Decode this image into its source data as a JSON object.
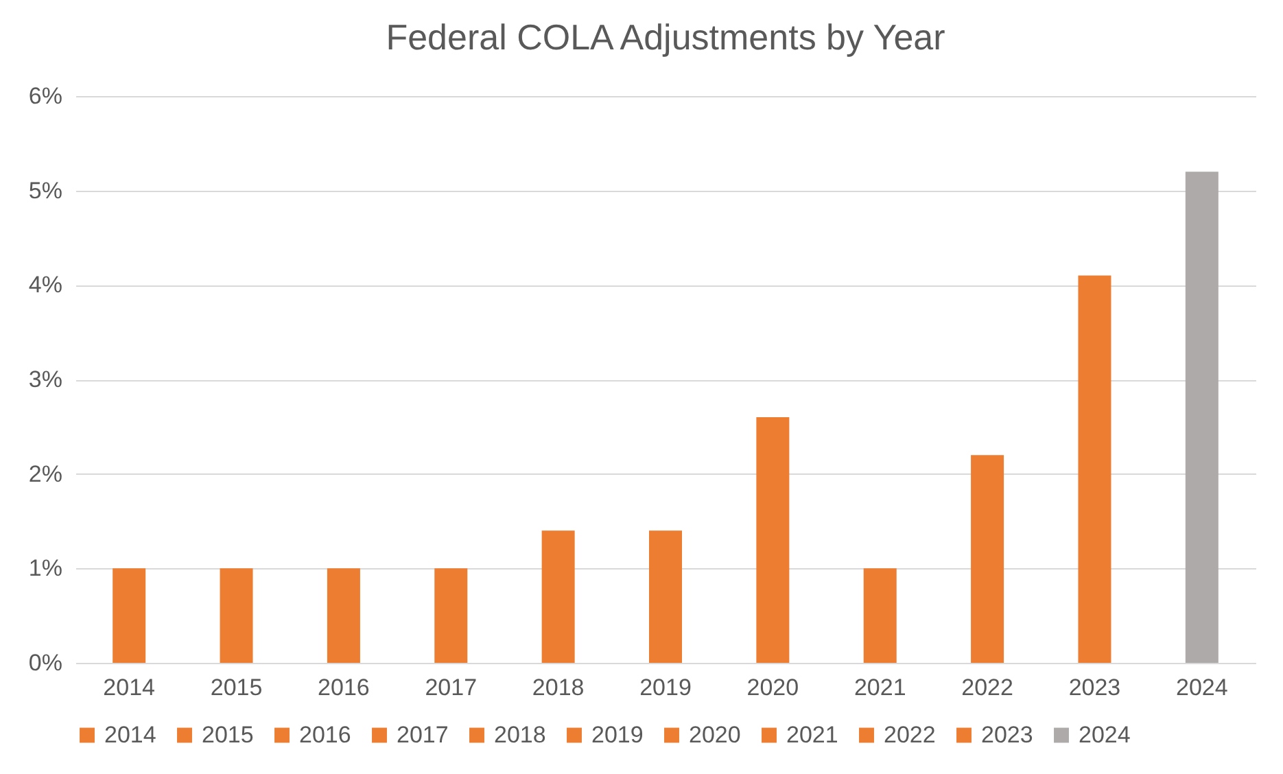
{
  "chart_data": {
    "type": "bar",
    "title": "Federal COLA Adjustments by Year",
    "categories": [
      "2014",
      "2015",
      "2016",
      "2017",
      "2018",
      "2019",
      "2020",
      "2021",
      "2022",
      "2023",
      "2024"
    ],
    "series": [
      {
        "name": "2014",
        "color": "#ed7d31",
        "values": [
          1,
          null,
          null,
          null,
          null,
          null,
          null,
          null,
          null,
          null,
          null
        ]
      },
      {
        "name": "2015",
        "color": "#ed7d31",
        "values": [
          null,
          1,
          null,
          null,
          null,
          null,
          null,
          null,
          null,
          null,
          null
        ]
      },
      {
        "name": "2016",
        "color": "#ed7d31",
        "values": [
          null,
          null,
          1,
          null,
          null,
          null,
          null,
          null,
          null,
          null,
          null
        ]
      },
      {
        "name": "2017",
        "color": "#ed7d31",
        "values": [
          null,
          null,
          null,
          1,
          null,
          null,
          null,
          null,
          null,
          null,
          null
        ]
      },
      {
        "name": "2018",
        "color": "#ed7d31",
        "values": [
          null,
          null,
          null,
          null,
          1.4,
          null,
          null,
          null,
          null,
          null,
          null
        ]
      },
      {
        "name": "2019",
        "color": "#ed7d31",
        "values": [
          null,
          null,
          null,
          null,
          null,
          1.4,
          null,
          null,
          null,
          null,
          null
        ]
      },
      {
        "name": "2020",
        "color": "#ed7d31",
        "values": [
          null,
          null,
          null,
          null,
          null,
          null,
          2.6,
          null,
          null,
          null,
          null
        ]
      },
      {
        "name": "2021",
        "color": "#ed7d31",
        "values": [
          null,
          null,
          null,
          null,
          null,
          null,
          null,
          1,
          null,
          null,
          null
        ]
      },
      {
        "name": "2022",
        "color": "#ed7d31",
        "values": [
          null,
          null,
          null,
          null,
          null,
          null,
          null,
          null,
          2.2,
          null,
          null
        ]
      },
      {
        "name": "2023",
        "color": "#ed7d31",
        "values": [
          null,
          null,
          null,
          null,
          null,
          null,
          null,
          null,
          null,
          4.1,
          null
        ]
      },
      {
        "name": "2024",
        "color": "#aeaaaa",
        "values": [
          null,
          null,
          null,
          null,
          null,
          null,
          null,
          null,
          null,
          null,
          5.2
        ]
      }
    ],
    "ylim": [
      0,
      6
    ],
    "yticks": [
      {
        "value": 0,
        "label": "0%"
      },
      {
        "value": 1,
        "label": "1%"
      },
      {
        "value": 2,
        "label": "2%"
      },
      {
        "value": 3,
        "label": "3%"
      },
      {
        "value": 4,
        "label": "4%"
      },
      {
        "value": 5,
        "label": "5%"
      },
      {
        "value": 6,
        "label": "6%"
      }
    ],
    "grid": "y",
    "legend": "bottom"
  }
}
